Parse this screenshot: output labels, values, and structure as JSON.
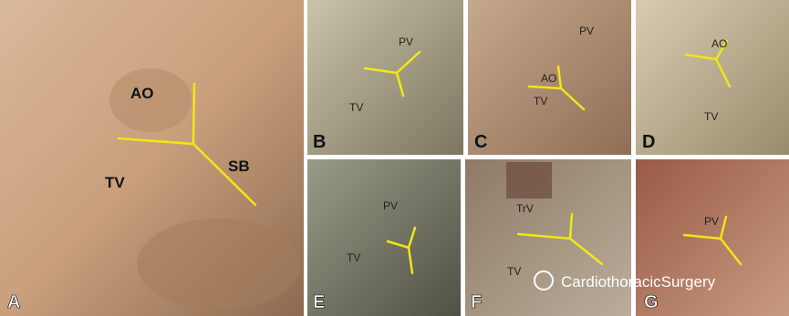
{
  "panels": [
    {
      "label": "A",
      "annotations": [
        "AO",
        "TV",
        "SB"
      ]
    },
    {
      "label": "B",
      "annotations": [
        "PV",
        "TV"
      ]
    },
    {
      "label": "C",
      "annotations": [
        "PV",
        "AO",
        "TV"
      ]
    },
    {
      "label": "D",
      "annotations": [
        "AO",
        "TV"
      ]
    },
    {
      "label": "E",
      "annotations": [
        "PV",
        "TV"
      ]
    },
    {
      "label": "F",
      "annotations": [
        "TrV",
        "TV"
      ]
    },
    {
      "label": "G",
      "annotations": [
        "PV"
      ]
    }
  ],
  "watermark": "CardiothoracicSurgery"
}
